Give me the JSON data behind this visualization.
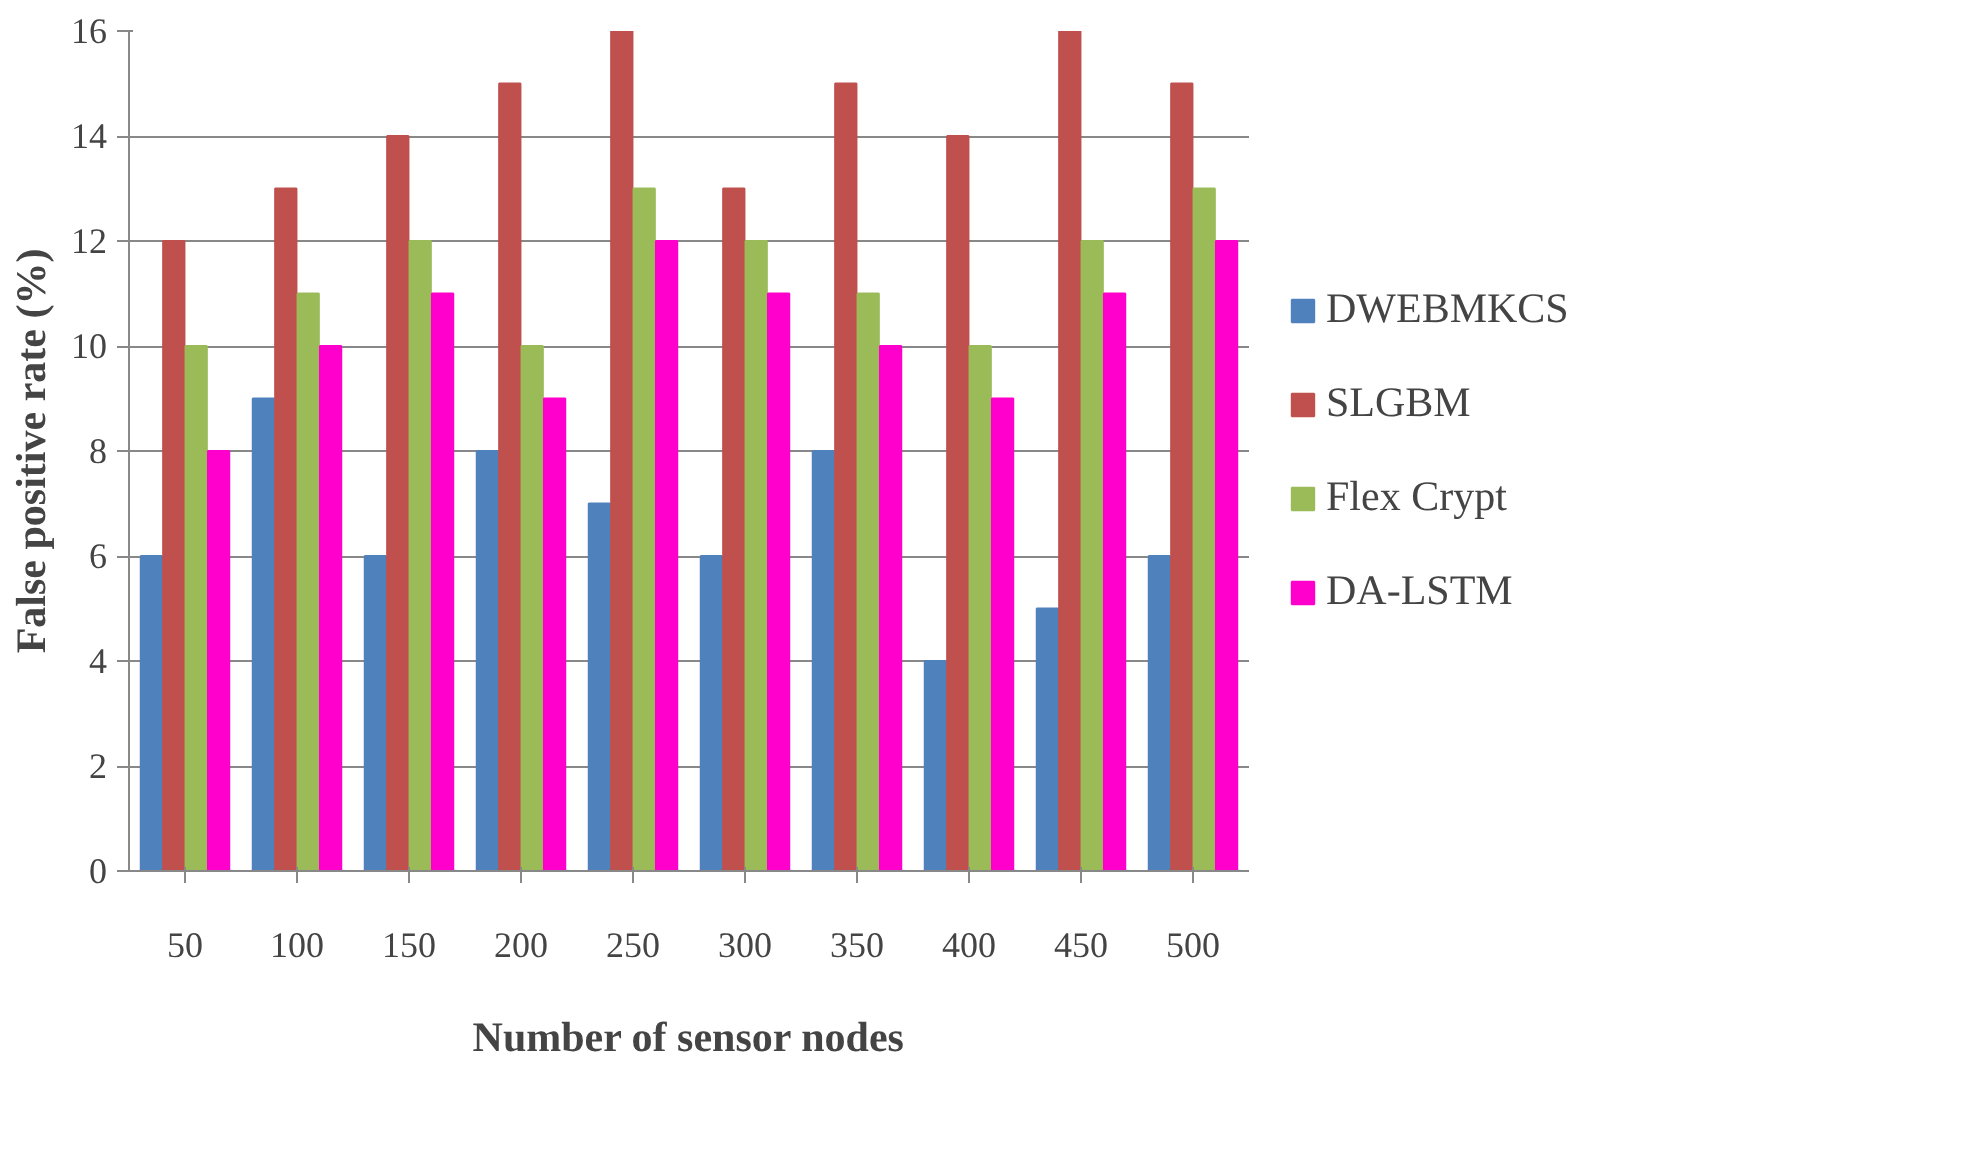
{
  "chart_data": {
    "type": "bar",
    "xlabel": "Number of sensor nodes",
    "ylabel": "False positive rate (%)",
    "categories": [
      "50",
      "100",
      "150",
      "200",
      "250",
      "300",
      "350",
      "400",
      "450",
      "500"
    ],
    "series": [
      {
        "name": "DWEBMKCS",
        "color": "#4f81bd",
        "values": [
          6,
          9,
          6,
          8,
          7,
          6,
          8,
          4,
          5,
          6
        ]
      },
      {
        "name": "SLGBM",
        "color": "#c0504d",
        "values": [
          12,
          13,
          14,
          15,
          16,
          13,
          15,
          14,
          16,
          15
        ]
      },
      {
        "name": "Flex Crypt",
        "color": "#9bbb59",
        "values": [
          10,
          11,
          12,
          10,
          13,
          12,
          11,
          10,
          12,
          13
        ]
      },
      {
        "name": "DA-LSTM",
        "color": "#ff00cc",
        "values": [
          8,
          10,
          11,
          9,
          12,
          11,
          10,
          9,
          11,
          12
        ]
      }
    ],
    "ylim": [
      0,
      16
    ],
    "yticks": [
      0,
      2,
      4,
      6,
      8,
      10,
      12,
      14,
      16
    ],
    "grid": "y",
    "legend": "right"
  }
}
